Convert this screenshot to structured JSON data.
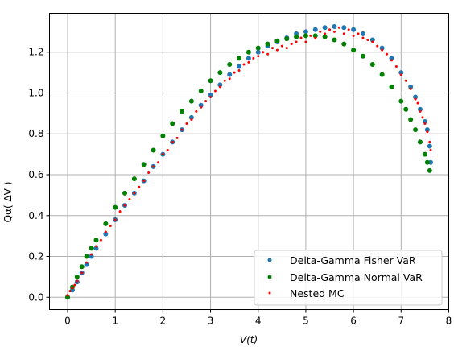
{
  "chart_data": {
    "type": "scatter",
    "xlabel": "V(t)",
    "ylabel": "Qα( ΔV )",
    "xlim": [
      -0.38,
      8.0
    ],
    "ylim": [
      -0.06,
      1.39
    ],
    "x_ticks": [
      0,
      1,
      2,
      3,
      4,
      5,
      6,
      7,
      8
    ],
    "y_ticks": [
      0.0,
      0.2,
      0.4,
      0.6,
      0.8,
      1.0,
      1.2
    ],
    "x_tick_labels": [
      "0",
      "1",
      "2",
      "3",
      "4",
      "5",
      "6",
      "7",
      "8"
    ],
    "y_tick_labels": [
      "0.0",
      "0.2",
      "0.4",
      "0.6",
      "0.8",
      "1.0",
      "1.2"
    ],
    "grid": true,
    "legend_position": "lower-right",
    "series": [
      {
        "name": "Delta-Gamma Fisher VaR",
        "color": "#1f77b4",
        "marker": "dot",
        "points": [
          [
            0.0,
            0.0
          ],
          [
            0.1,
            0.035
          ],
          [
            0.2,
            0.075
          ],
          [
            0.3,
            0.12
          ],
          [
            0.4,
            0.16
          ],
          [
            0.5,
            0.2
          ],
          [
            0.6,
            0.24
          ],
          [
            0.8,
            0.31
          ],
          [
            1.0,
            0.38
          ],
          [
            1.2,
            0.45
          ],
          [
            1.4,
            0.51
          ],
          [
            1.6,
            0.57
          ],
          [
            1.8,
            0.64
          ],
          [
            2.0,
            0.7
          ],
          [
            2.2,
            0.76
          ],
          [
            2.4,
            0.82
          ],
          [
            2.6,
            0.88
          ],
          [
            2.8,
            0.94
          ],
          [
            3.0,
            0.99
          ],
          [
            3.2,
            1.04
          ],
          [
            3.4,
            1.09
          ],
          [
            3.6,
            1.13
          ],
          [
            3.8,
            1.17
          ],
          [
            4.0,
            1.2
          ],
          [
            4.2,
            1.23
          ],
          [
            4.4,
            1.25
          ],
          [
            4.6,
            1.27
          ],
          [
            4.8,
            1.29
          ],
          [
            5.0,
            1.3
          ],
          [
            5.2,
            1.31
          ],
          [
            5.4,
            1.32
          ],
          [
            5.6,
            1.325
          ],
          [
            5.8,
            1.32
          ],
          [
            6.0,
            1.31
          ],
          [
            6.2,
            1.29
          ],
          [
            6.4,
            1.26
          ],
          [
            6.6,
            1.22
          ],
          [
            6.8,
            1.17
          ],
          [
            7.0,
            1.1
          ],
          [
            7.2,
            1.03
          ],
          [
            7.3,
            0.98
          ],
          [
            7.4,
            0.92
          ],
          [
            7.5,
            0.86
          ],
          [
            7.55,
            0.82
          ],
          [
            7.6,
            0.74
          ],
          [
            7.62,
            0.66
          ]
        ]
      },
      {
        "name": "Delta-Gamma Normal VaR",
        "color": "#008000",
        "marker": "dot",
        "points": [
          [
            0.0,
            0.0
          ],
          [
            0.1,
            0.05
          ],
          [
            0.2,
            0.1
          ],
          [
            0.3,
            0.15
          ],
          [
            0.4,
            0.2
          ],
          [
            0.5,
            0.24
          ],
          [
            0.6,
            0.28
          ],
          [
            0.8,
            0.36
          ],
          [
            1.0,
            0.44
          ],
          [
            1.2,
            0.51
          ],
          [
            1.4,
            0.58
          ],
          [
            1.6,
            0.65
          ],
          [
            1.8,
            0.72
          ],
          [
            2.0,
            0.79
          ],
          [
            2.2,
            0.85
          ],
          [
            2.4,
            0.91
          ],
          [
            2.6,
            0.96
          ],
          [
            2.8,
            1.01
          ],
          [
            3.0,
            1.06
          ],
          [
            3.2,
            1.1
          ],
          [
            3.4,
            1.14
          ],
          [
            3.6,
            1.17
          ],
          [
            3.8,
            1.2
          ],
          [
            4.0,
            1.22
          ],
          [
            4.2,
            1.24
          ],
          [
            4.4,
            1.255
          ],
          [
            4.6,
            1.265
          ],
          [
            4.8,
            1.275
          ],
          [
            5.0,
            1.28
          ],
          [
            5.2,
            1.28
          ],
          [
            5.4,
            1.275
          ],
          [
            5.6,
            1.26
          ],
          [
            5.8,
            1.24
          ],
          [
            6.0,
            1.21
          ],
          [
            6.2,
            1.18
          ],
          [
            6.4,
            1.14
          ],
          [
            6.6,
            1.09
          ],
          [
            6.8,
            1.03
          ],
          [
            7.0,
            0.96
          ],
          [
            7.1,
            0.92
          ],
          [
            7.2,
            0.87
          ],
          [
            7.3,
            0.82
          ],
          [
            7.4,
            0.76
          ],
          [
            7.5,
            0.7
          ],
          [
            7.55,
            0.66
          ],
          [
            7.6,
            0.62
          ]
        ]
      },
      {
        "name": "Nested MC",
        "color": "#ff0000",
        "marker": "small-dot",
        "points": [
          [
            0.0,
            0.01
          ],
          [
            0.05,
            0.03
          ],
          [
            0.1,
            0.045
          ],
          [
            0.15,
            0.06
          ],
          [
            0.2,
            0.08
          ],
          [
            0.3,
            0.12
          ],
          [
            0.4,
            0.17
          ],
          [
            0.5,
            0.21
          ],
          [
            0.6,
            0.25
          ],
          [
            0.7,
            0.28
          ],
          [
            0.8,
            0.32
          ],
          [
            0.9,
            0.35
          ],
          [
            1.0,
            0.38
          ],
          [
            1.1,
            0.42
          ],
          [
            1.2,
            0.45
          ],
          [
            1.3,
            0.48
          ],
          [
            1.4,
            0.51
          ],
          [
            1.5,
            0.54
          ],
          [
            1.6,
            0.57
          ],
          [
            1.7,
            0.61
          ],
          [
            1.8,
            0.64
          ],
          [
            1.9,
            0.66
          ],
          [
            2.0,
            0.7
          ],
          [
            2.1,
            0.72
          ],
          [
            2.2,
            0.76
          ],
          [
            2.3,
            0.78
          ],
          [
            2.4,
            0.82
          ],
          [
            2.5,
            0.85
          ],
          [
            2.6,
            0.87
          ],
          [
            2.7,
            0.91
          ],
          [
            2.8,
            0.93
          ],
          [
            2.9,
            0.96
          ],
          [
            3.0,
            0.98
          ],
          [
            3.1,
            1.01
          ],
          [
            3.2,
            1.03
          ],
          [
            3.3,
            1.06
          ],
          [
            3.4,
            1.07
          ],
          [
            3.5,
            1.1
          ],
          [
            3.6,
            1.11
          ],
          [
            3.7,
            1.14
          ],
          [
            3.8,
            1.15
          ],
          [
            3.9,
            1.17
          ],
          [
            4.0,
            1.18
          ],
          [
            4.1,
            1.2
          ],
          [
            4.2,
            1.19
          ],
          [
            4.3,
            1.22
          ],
          [
            4.4,
            1.21
          ],
          [
            4.5,
            1.23
          ],
          [
            4.6,
            1.22
          ],
          [
            4.7,
            1.24
          ],
          [
            4.8,
            1.25
          ],
          [
            4.9,
            1.27
          ],
          [
            5.0,
            1.25
          ],
          [
            5.1,
            1.28
          ],
          [
            5.2,
            1.27
          ],
          [
            5.3,
            1.3
          ],
          [
            5.4,
            1.29
          ],
          [
            5.5,
            1.31
          ],
          [
            5.6,
            1.3
          ],
          [
            5.7,
            1.32
          ],
          [
            5.8,
            1.29
          ],
          [
            5.9,
            1.31
          ],
          [
            6.0,
            1.28
          ],
          [
            6.1,
            1.29
          ],
          [
            6.2,
            1.27
          ],
          [
            6.3,
            1.26
          ],
          [
            6.4,
            1.25
          ],
          [
            6.5,
            1.23
          ],
          [
            6.6,
            1.21
          ],
          [
            6.7,
            1.19
          ],
          [
            6.8,
            1.16
          ],
          [
            6.9,
            1.13
          ],
          [
            7.0,
            1.09
          ],
          [
            7.1,
            1.06
          ],
          [
            7.2,
            1.02
          ],
          [
            7.3,
            0.97
          ],
          [
            7.35,
            0.95
          ],
          [
            7.4,
            0.91
          ],
          [
            7.45,
            0.88
          ],
          [
            7.5,
            0.85
          ],
          [
            7.55,
            0.81
          ],
          [
            7.6,
            0.76
          ],
          [
            7.62,
            0.72
          ]
        ]
      }
    ]
  }
}
